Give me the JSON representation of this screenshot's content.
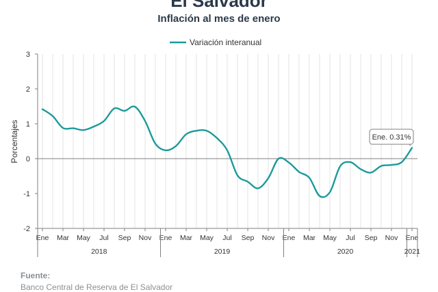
{
  "header": {
    "title": "El Salvador",
    "subtitle": "Inflación al mes de enero"
  },
  "footer": {
    "source_title": "Fuente:",
    "source_text": "Banco Central de Reserva de El Salvador"
  },
  "chart_data": {
    "type": "line",
    "ylabel": "Porcentajes",
    "ylim": [
      -2,
      3
    ],
    "yticks": [
      "3",
      "2",
      "1",
      "0",
      "-1",
      "-2"
    ],
    "grid": "vertical",
    "legend_position": "top-center",
    "series": [
      {
        "name": "Variación interanual",
        "color": "#1b9a9a",
        "values": [
          1.42,
          1.22,
          0.88,
          0.87,
          0.82,
          0.92,
          1.08,
          1.44,
          1.37,
          1.49,
          1.08,
          0.43,
          0.24,
          0.36,
          0.7,
          0.8,
          0.8,
          0.59,
          0.24,
          -0.48,
          -0.66,
          -0.85,
          -0.56,
          0.0,
          -0.11,
          -0.38,
          -0.55,
          -1.07,
          -0.96,
          -0.22,
          -0.1,
          -0.3,
          -0.4,
          -0.21,
          -0.18,
          -0.1,
          0.31
        ]
      }
    ],
    "x_tick_labels": [
      "Ene",
      "Mar",
      "May",
      "Jul",
      "Sep",
      "Nov",
      "Ene",
      "Mar",
      "May",
      "Jul",
      "Sep",
      "Nov",
      "Ene",
      "Mar",
      "May",
      "Jul",
      "Sep",
      "Nov",
      "Ene"
    ],
    "year_labels": [
      "2018",
      "2019",
      "2020",
      "2021"
    ],
    "annotation": {
      "text": "Ene. 0.31%",
      "point_index": 36
    }
  }
}
